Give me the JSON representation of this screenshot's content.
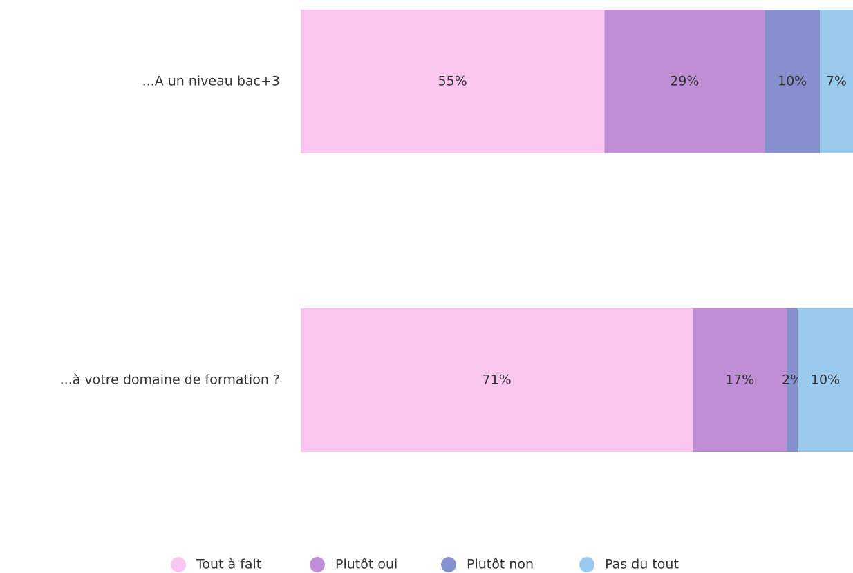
{
  "chart_data": {
    "type": "stacked-bar-horizontal",
    "categories": [
      "...A un niveau bac+3",
      "...à votre domaine de formation ?"
    ],
    "series": [
      {
        "name": "Tout à fait",
        "color": "#f9c6ef",
        "values": [
          55,
          71
        ],
        "value_labels": [
          "55%",
          "71%"
        ]
      },
      {
        "name": "Plutôt oui",
        "color": "#c08ed6",
        "values": [
          29,
          17
        ],
        "value_labels": [
          "29%",
          "17%"
        ]
      },
      {
        "name": "Plutôt non",
        "color": "#8790cf",
        "values": [
          10,
          2
        ],
        "value_labels": [
          "10%",
          "2%"
        ]
      },
      {
        "name": "Pas du tout",
        "color": "#99caee",
        "values": [
          7,
          10
        ],
        "value_labels": [
          "7%",
          "10%"
        ]
      }
    ],
    "xlim": [
      0,
      100
    ],
    "legend": "bottom"
  }
}
